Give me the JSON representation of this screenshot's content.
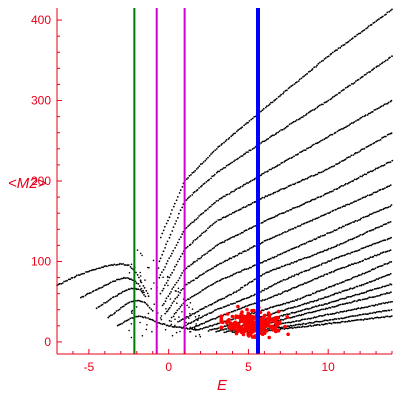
{
  "chart_data": {
    "type": "scatter",
    "xlabel": "E",
    "ylabel": "<M2>",
    "xlim": [
      -7,
      14
    ],
    "ylim": [
      -15,
      415
    ],
    "xticks": [
      -5,
      0,
      5,
      10
    ],
    "yticks": [
      0,
      100,
      200,
      300,
      400
    ],
    "xtick_labels": [
      "-5",
      "0",
      "5",
      "10"
    ],
    "ytick_labels": [
      "0",
      "100",
      "200",
      "300",
      "400"
    ],
    "grid": false,
    "legend": false,
    "vertical_lines": [
      {
        "x": -2.15,
        "color": "#007a00"
      },
      {
        "x": -0.75,
        "color": "#d000d0"
      },
      {
        "x": 1.0,
        "color": "#d000d0"
      },
      {
        "x": 5.6,
        "color": "#0000ff"
      }
    ],
    "band_curves": [
      {
        "x": [
          -0.5,
          1,
          3,
          6,
          10,
          14
        ],
        "y": [
          130,
          200,
          240,
          290,
          355,
          413
        ]
      },
      {
        "x": [
          -0.6,
          1,
          3,
          6,
          10,
          14
        ],
        "y": [
          100,
          175,
          210,
          250,
          300,
          355
        ]
      },
      {
        "x": [
          -0.6,
          1,
          3,
          6,
          10,
          14
        ],
        "y": [
          80,
          140,
          175,
          210,
          255,
          300
        ]
      },
      {
        "x": [
          -0.5,
          1,
          3,
          6,
          10,
          14
        ],
        "y": [
          60,
          115,
          150,
          180,
          215,
          260
        ]
      },
      {
        "x": [
          -0.4,
          1,
          3,
          6,
          10,
          14
        ],
        "y": [
          45,
          90,
          120,
          150,
          185,
          225
        ]
      },
      {
        "x": [
          -0.2,
          1,
          3,
          6,
          10,
          14
        ],
        "y": [
          35,
          70,
          95,
          125,
          160,
          195
        ]
      },
      {
        "x": [
          0.2,
          1,
          3,
          6,
          10,
          14
        ],
        "y": [
          30,
          50,
          75,
          100,
          135,
          170
        ]
      },
      {
        "x": [
          0.6,
          2,
          4,
          6,
          10,
          14
        ],
        "y": [
          25,
          40,
          60,
          85,
          115,
          150
        ]
      },
      {
        "x": [
          1,
          3,
          5,
          7,
          10,
          14
        ],
        "y": [
          20,
          40,
          55,
          75,
          100,
          130
        ]
      },
      {
        "x": [
          1.5,
          3,
          5,
          7,
          10,
          14
        ],
        "y": [
          18,
          30,
          45,
          60,
          85,
          115
        ]
      },
      {
        "x": [
          2,
          4,
          6,
          8,
          11,
          14
        ],
        "y": [
          16,
          28,
          40,
          52,
          75,
          100
        ]
      },
      {
        "x": [
          2.5,
          4,
          6,
          9,
          12,
          14
        ],
        "y": [
          14,
          22,
          32,
          50,
          70,
          85
        ]
      },
      {
        "x": [
          3,
          5,
          7,
          10,
          12,
          14
        ],
        "y": [
          13,
          22,
          32,
          48,
          60,
          72
        ]
      },
      {
        "x": [
          3.5,
          6,
          8,
          10,
          12,
          14
        ],
        "y": [
          12,
          22,
          32,
          42,
          52,
          62
        ]
      },
      {
        "x": [
          4,
          6,
          8,
          10,
          12,
          14
        ],
        "y": [
          12,
          18,
          26,
          34,
          42,
          50
        ]
      },
      {
        "x": [
          4.5,
          7,
          9,
          11,
          14
        ],
        "y": [
          12,
          18,
          24,
          30,
          40
        ]
      },
      {
        "x": [
          5,
          8,
          11,
          14
        ],
        "y": [
          12,
          18,
          25,
          32
        ]
      }
    ],
    "left_branches": [
      {
        "x": [
          -7,
          -6,
          -5,
          -4,
          -3,
          -2.5,
          -2.0,
          -1.6,
          -1.2
        ],
        "y": [
          70,
          80,
          88,
          94,
          97,
          95,
          85,
          70,
          55
        ]
      },
      {
        "x": [
          -5.5,
          -4.5,
          -3.5,
          -2.8,
          -2.3,
          -1.9,
          -1.5
        ],
        "y": [
          55,
          65,
          75,
          80,
          78,
          72,
          60
        ]
      },
      {
        "x": [
          -4.5,
          -3.5,
          -2.8,
          -2.3,
          -1.8,
          -1.4
        ],
        "y": [
          42,
          55,
          63,
          67,
          65,
          55
        ]
      },
      {
        "x": [
          -3.8,
          -3,
          -2.4,
          -1.9,
          -1.4,
          -1.0
        ],
        "y": [
          30,
          42,
          50,
          52,
          48,
          38
        ]
      },
      {
        "x": [
          -3.2,
          -2.5,
          -1.9,
          -1.4,
          -0.8,
          0,
          1,
          2
        ],
        "y": [
          20,
          28,
          32,
          30,
          25,
          20,
          17,
          15
        ]
      }
    ],
    "highlight_cluster": {
      "color": "#ff0000",
      "x_range": [
        3.3,
        7.5
      ],
      "y_range": [
        0,
        50
      ],
      "center": [
        5.2,
        22
      ]
    }
  }
}
